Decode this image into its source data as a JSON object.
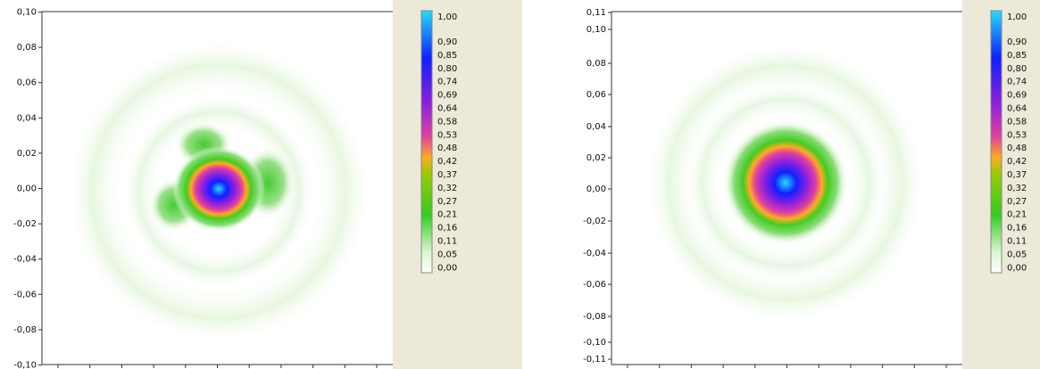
{
  "panels": [
    {
      "yticks": [
        "0,10",
        "0,08",
        "0,06",
        "0,04",
        "0,02",
        "0,00",
        "-0,02",
        "-0,04",
        "-0,06",
        "-0,08",
        "-0,10"
      ],
      "colorbar_labels": [
        "1,00",
        "0,90",
        "0,85",
        "0,80",
        "0,74",
        "0,69",
        "0,64",
        "0,58",
        "0,53",
        "0,48",
        "0,42",
        "0,37",
        "0,32",
        "0,27",
        "0,21",
        "0,16",
        "0,11",
        "0,05",
        "0,00"
      ]
    },
    {
      "yticks": [
        "0,11",
        "0,10",
        "0,08",
        "0,06",
        "0,04",
        "0,02",
        "0,00",
        "-0,02",
        "-0,04",
        "-0,06",
        "-0,08",
        "-0,10",
        "-0,11"
      ],
      "colorbar_labels": [
        "1,00",
        "0,90",
        "0,85",
        "0,80",
        "0,74",
        "0,69",
        "0,64",
        "0,58",
        "0,53",
        "0,48",
        "0,42",
        "0,37",
        "0,32",
        "0,27",
        "0,21",
        "0,16",
        "0,11",
        "0,05",
        "0,00"
      ]
    }
  ]
}
